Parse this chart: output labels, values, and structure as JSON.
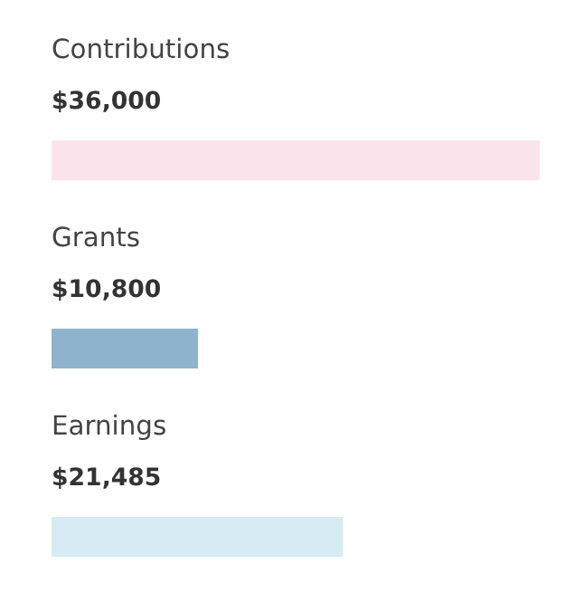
{
  "chart_data": {
    "type": "bar",
    "orientation": "horizontal",
    "categories": [
      "Contributions",
      "Grants",
      "Earnings"
    ],
    "values": [
      36000,
      10800,
      21485
    ],
    "value_labels": [
      "$36,000",
      "$10,800",
      "$21,485"
    ],
    "colors": [
      "#fce4ec",
      "#8fb3cc",
      "#d6ebf3"
    ]
  }
}
